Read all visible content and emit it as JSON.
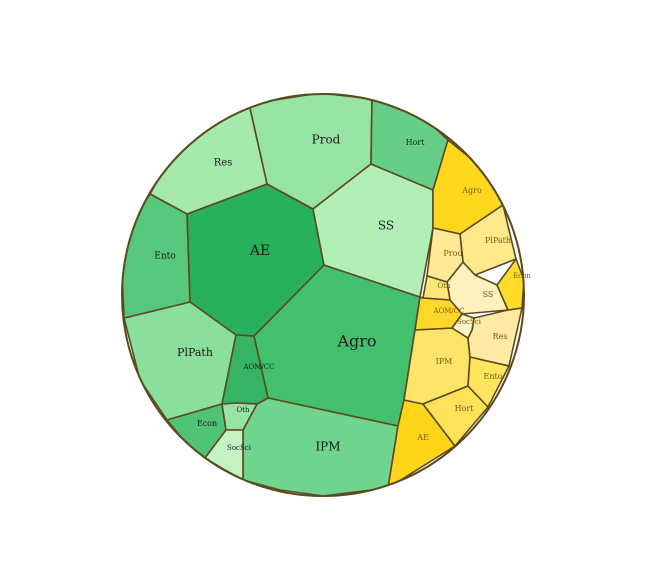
{
  "chart_data": {
    "type": "voronoi-treemap",
    "groups": [
      {
        "palette": "green",
        "cells": [
          {
            "id": "g-agro",
            "label": "Agro",
            "color": "#43c06e"
          },
          {
            "id": "g-ae",
            "label": "AE",
            "color": "#28b05d"
          },
          {
            "id": "g-ipm",
            "label": "IPM",
            "color": "#6fd48e"
          },
          {
            "id": "g-prod",
            "label": "Prod",
            "color": "#96e3a4"
          },
          {
            "id": "g-plpath",
            "label": "PlPath",
            "color": "#8bdf9c"
          },
          {
            "id": "g-ss",
            "label": "SS",
            "color": "#b2efb7"
          },
          {
            "id": "g-res",
            "label": "Res",
            "color": "#a5e9ad"
          },
          {
            "id": "g-ento",
            "label": "Ento",
            "color": "#56c77d"
          },
          {
            "id": "g-hort",
            "label": "Hort",
            "color": "#66cd86"
          },
          {
            "id": "g-aomcc",
            "label": "AOM/CC",
            "color": "#35b465"
          },
          {
            "id": "g-econ",
            "label": "Econ",
            "color": "#4fc476"
          },
          {
            "id": "g-oth",
            "label": "Oth",
            "color": "#98e3a6"
          },
          {
            "id": "g-socsci",
            "label": "SocSci",
            "color": "#c3f3c3"
          }
        ]
      },
      {
        "palette": "yellow",
        "cells": [
          {
            "id": "y-agro",
            "label": "Agro",
            "color": "#ffd81e"
          },
          {
            "id": "y-ae",
            "label": "AE",
            "color": "#ffd51a"
          },
          {
            "id": "y-ipm",
            "label": "IPM",
            "color": "#ffe46a"
          },
          {
            "id": "y-hort",
            "label": "Hort",
            "color": "#ffe15a"
          },
          {
            "id": "y-ento",
            "label": "Ento",
            "color": "#ffe45e"
          },
          {
            "id": "y-res",
            "label": "Res",
            "color": "#ffeaa4"
          },
          {
            "id": "y-ss",
            "label": "SS",
            "color": "#fff2c0"
          },
          {
            "id": "y-plpath",
            "label": "PlPath",
            "color": "#ffe98a"
          },
          {
            "id": "y-prod",
            "label": "Prod",
            "color": "#ffe896"
          },
          {
            "id": "y-econ",
            "label": "Econ",
            "color": "#ffdc28"
          },
          {
            "id": "y-oth",
            "label": "Oth",
            "color": "#ffe77c"
          },
          {
            "id": "y-aomcc",
            "label": "AOM/CC",
            "color": "#ffd82a"
          },
          {
            "id": "y-socsci",
            "label": "SocSci",
            "color": "#fff4cc"
          }
        ]
      }
    ],
    "outline_color": "#5a4a1e",
    "label_color": "#1a1a1a",
    "label_color_small": "#7a5a10"
  }
}
